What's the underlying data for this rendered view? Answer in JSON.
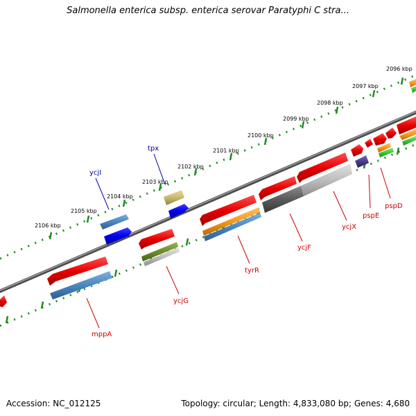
{
  "header": {
    "title": "Salmonella enterica subsp. enterica serovar Paratyphi C stra..."
  },
  "footer": {
    "accession": "Accession: NC_012125",
    "summary": "Topology: circular; Length: 4,833,080 bp; Genes: 4,680"
  },
  "scale": {
    "ticks": [
      "2096 kbp",
      "2097 kbp",
      "2098 kbp",
      "2099 kbp",
      "2100 kbp",
      "2101 kbp",
      "2102 kbp",
      "2103 kbp",
      "2104 kbp",
      "2105 kbp",
      "2106 kbp"
    ]
  },
  "genes": {
    "outer": [
      "tpx",
      "ycjI"
    ],
    "inner": [
      "mppA",
      "ycjG",
      "tyrR",
      "ycjF",
      "ycjX",
      "pspE",
      "pspD"
    ]
  },
  "colors": {
    "backbone": "#777777",
    "tick": "#1e8c1e",
    "cds": "#e80000",
    "blue_feature": "#0000ee",
    "steelblue_feature": "#4a86c0",
    "orange_feature": "#f39a1c",
    "olive_feature": "#6b8a2a",
    "khaki_feature": "#c8b96e",
    "green_feature": "#3cc83c",
    "dark_gray_feature": "#5a5a5a",
    "light_gray_feature": "#bdbdbd",
    "navy_feature": "#4a3c8c",
    "outer_label": "#0000aa",
    "inner_label": "#cc0000"
  }
}
